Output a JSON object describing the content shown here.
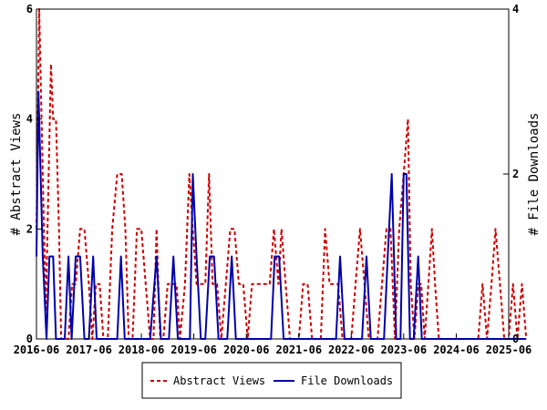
{
  "chart_data": {
    "type": "line",
    "y_left_label": "# Abstract Views",
    "y_right_label": "# File Downloads",
    "y_left_lim": [
      0,
      6
    ],
    "y_right_lim": [
      0,
      4
    ],
    "y_left_ticks": [
      0,
      2,
      4,
      6
    ],
    "y_right_ticks": [
      0,
      2,
      4
    ],
    "x_ticks": [
      "2016-06",
      "2017-06",
      "2018-06",
      "2019-06",
      "2020-06",
      "2021-06",
      "2022-06",
      "2023-06",
      "2024-06",
      "2025-06"
    ],
    "x_start": "2016-06",
    "x_end": "2025-06",
    "grid": false,
    "legend_position": "bottom-center",
    "series": [
      {
        "name": "Abstract Views",
        "axis": "left",
        "color": "#cc0000",
        "style": "dashed",
        "points": [
          [
            "2016-06-01",
            2
          ],
          [
            "2016-06-20",
            6
          ],
          [
            "2016-07-15",
            3
          ],
          [
            "2016-08-05",
            0.5
          ],
          [
            "2016-08-25",
            3
          ],
          [
            "2016-09-10",
            5
          ],
          [
            "2016-09-25",
            4
          ],
          [
            "2016-10-15",
            4
          ],
          [
            "2016-11-05",
            2
          ],
          [
            "2016-11-20",
            0
          ],
          [
            "2017-01-10",
            0
          ],
          [
            "2017-02-05",
            1
          ],
          [
            "2017-03-01",
            1
          ],
          [
            "2017-04-01",
            2
          ],
          [
            "2017-05-01",
            2
          ],
          [
            "2017-06-01",
            1
          ],
          [
            "2017-06-25",
            0
          ],
          [
            "2017-07-20",
            1
          ],
          [
            "2017-08-15",
            1
          ],
          [
            "2017-09-10",
            0
          ],
          [
            "2017-10-10",
            0
          ],
          [
            "2017-11-10",
            2
          ],
          [
            "2017-12-15",
            3
          ],
          [
            "2018-01-15",
            3
          ],
          [
            "2018-02-10",
            2
          ],
          [
            "2018-03-05",
            0
          ],
          [
            "2018-04-01",
            0
          ],
          [
            "2018-05-01",
            2
          ],
          [
            "2018-06-01",
            2
          ],
          [
            "2018-07-01",
            1
          ],
          [
            "2018-08-01",
            0
          ],
          [
            "2018-08-25",
            0
          ],
          [
            "2018-09-15",
            2
          ],
          [
            "2018-10-10",
            0
          ],
          [
            "2018-11-01",
            0
          ],
          [
            "2018-12-01",
            1
          ],
          [
            "2019-01-01",
            1
          ],
          [
            "2019-02-01",
            1
          ],
          [
            "2019-02-25",
            0
          ],
          [
            "2019-04-01",
            1
          ],
          [
            "2019-05-01",
            3
          ],
          [
            "2019-05-25",
            2
          ],
          [
            "2019-06-20",
            1
          ],
          [
            "2019-07-20",
            1
          ],
          [
            "2019-08-20",
            1
          ],
          [
            "2019-09-15",
            3
          ],
          [
            "2019-10-10",
            1
          ],
          [
            "2019-11-10",
            1
          ],
          [
            "2019-12-10",
            0
          ],
          [
            "2020-01-10",
            1
          ],
          [
            "2020-02-10",
            2
          ],
          [
            "2020-03-10",
            2
          ],
          [
            "2020-04-10",
            1
          ],
          [
            "2020-05-10",
            1
          ],
          [
            "2020-06-10",
            0
          ],
          [
            "2020-07-10",
            1
          ],
          [
            "2020-08-10",
            1
          ],
          [
            "2020-09-10",
            1
          ],
          [
            "2020-10-10",
            1
          ],
          [
            "2020-11-10",
            1
          ],
          [
            "2020-12-10",
            2
          ],
          [
            "2021-01-10",
            1
          ],
          [
            "2021-02-01",
            2
          ],
          [
            "2021-03-01",
            1
          ],
          [
            "2021-04-01",
            0
          ],
          [
            "2021-05-01",
            0
          ],
          [
            "2021-06-01",
            0
          ],
          [
            "2021-07-01",
            1
          ],
          [
            "2021-08-01",
            1
          ],
          [
            "2021-09-01",
            0
          ],
          [
            "2021-10-01",
            0
          ],
          [
            "2021-11-01",
            0
          ],
          [
            "2021-12-01",
            2
          ],
          [
            "2022-01-01",
            1
          ],
          [
            "2022-02-01",
            1
          ],
          [
            "2022-03-01",
            1
          ],
          [
            "2022-04-01",
            0
          ],
          [
            "2022-05-01",
            0
          ],
          [
            "2022-06-01",
            0
          ],
          [
            "2022-07-01",
            1
          ],
          [
            "2022-08-01",
            2
          ],
          [
            "2022-09-01",
            1
          ],
          [
            "2022-10-01",
            0
          ],
          [
            "2022-11-01",
            0
          ],
          [
            "2022-12-01",
            0
          ],
          [
            "2023-01-01",
            1
          ],
          [
            "2023-02-01",
            2
          ],
          [
            "2023-03-01",
            2
          ],
          [
            "2023-04-01",
            0
          ],
          [
            "2023-05-01",
            2
          ],
          [
            "2023-06-01",
            3
          ],
          [
            "2023-07-01",
            4
          ],
          [
            "2023-07-20",
            1
          ],
          [
            "2023-08-15",
            0
          ],
          [
            "2023-09-10",
            1
          ],
          [
            "2023-10-01",
            1
          ],
          [
            "2023-10-25",
            0
          ],
          [
            "2023-11-20",
            1
          ],
          [
            "2023-12-15",
            2
          ],
          [
            "2024-01-05",
            1
          ],
          [
            "2024-02-01",
            0
          ],
          [
            "2024-03-01",
            0
          ],
          [
            "2024-04-01",
            0
          ],
          [
            "2024-05-01",
            0
          ],
          [
            "2024-06-01",
            0
          ],
          [
            "2024-07-01",
            0
          ],
          [
            "2024-08-01",
            0
          ],
          [
            "2024-09-01",
            0
          ],
          [
            "2024-10-01",
            0
          ],
          [
            "2024-11-01",
            0
          ],
          [
            "2024-12-01",
            1
          ],
          [
            "2025-01-01",
            0
          ],
          [
            "2025-02-01",
            1
          ],
          [
            "2025-03-01",
            2
          ],
          [
            "2025-04-01",
            1
          ],
          [
            "2025-05-01",
            0
          ],
          [
            "2025-06-01",
            0
          ],
          [
            "2025-07-01",
            1
          ],
          [
            "2025-08-01",
            0
          ],
          [
            "2025-09-01",
            1
          ],
          [
            "2025-10-01",
            0
          ]
        ]
      },
      {
        "name": "File Downloads",
        "axis": "right",
        "color": "#0000aa",
        "style": "solid",
        "points": [
          [
            "2016-06-01",
            1
          ],
          [
            "2016-06-15",
            3
          ],
          [
            "2016-07-15",
            1
          ],
          [
            "2016-08-10",
            0
          ],
          [
            "2016-08-30",
            1
          ],
          [
            "2016-09-25",
            1
          ],
          [
            "2016-10-15",
            0
          ],
          [
            "2016-11-20",
            0
          ],
          [
            "2016-12-15",
            0
          ],
          [
            "2017-01-10",
            1
          ],
          [
            "2017-02-01",
            0
          ],
          [
            "2017-03-01",
            1
          ],
          [
            "2017-04-01",
            1
          ],
          [
            "2017-05-01",
            0
          ],
          [
            "2017-06-01",
            0
          ],
          [
            "2017-07-01",
            1
          ],
          [
            "2017-07-25",
            0
          ],
          [
            "2017-08-20",
            0
          ],
          [
            "2017-09-15",
            0
          ],
          [
            "2017-10-15",
            0
          ],
          [
            "2017-11-15",
            0
          ],
          [
            "2017-12-15",
            0
          ],
          [
            "2018-01-10",
            1
          ],
          [
            "2018-02-05",
            0
          ],
          [
            "2018-03-01",
            0
          ],
          [
            "2018-04-01",
            0
          ],
          [
            "2018-05-01",
            0
          ],
          [
            "2018-06-01",
            0
          ],
          [
            "2018-07-01",
            0
          ],
          [
            "2018-08-01",
            0
          ],
          [
            "2018-09-15",
            1
          ],
          [
            "2018-10-15",
            0
          ],
          [
            "2018-11-10",
            0
          ],
          [
            "2018-12-10",
            0
          ],
          [
            "2019-01-10",
            1
          ],
          [
            "2019-02-10",
            0
          ],
          [
            "2019-03-10",
            0
          ],
          [
            "2019-04-10",
            0
          ],
          [
            "2019-05-05",
            0
          ],
          [
            "2019-05-25",
            2
          ],
          [
            "2019-06-20",
            1
          ],
          [
            "2019-07-20",
            0
          ],
          [
            "2019-08-20",
            0
          ],
          [
            "2019-09-20",
            1
          ],
          [
            "2019-10-20",
            1
          ],
          [
            "2019-11-20",
            0
          ],
          [
            "2019-12-20",
            0
          ],
          [
            "2020-01-20",
            0
          ],
          [
            "2020-02-20",
            1
          ],
          [
            "2020-03-20",
            0
          ],
          [
            "2020-04-20",
            0
          ],
          [
            "2020-05-20",
            0
          ],
          [
            "2020-06-20",
            0
          ],
          [
            "2020-07-20",
            0
          ],
          [
            "2020-08-20",
            0
          ],
          [
            "2020-09-20",
            0
          ],
          [
            "2020-10-20",
            0
          ],
          [
            "2020-11-20",
            0
          ],
          [
            "2020-12-15",
            1
          ],
          [
            "2021-01-15",
            1
          ],
          [
            "2021-02-15",
            0
          ],
          [
            "2021-03-15",
            0
          ],
          [
            "2021-04-15",
            0
          ],
          [
            "2021-05-15",
            0
          ],
          [
            "2021-06-15",
            0
          ],
          [
            "2021-07-15",
            0
          ],
          [
            "2021-08-15",
            0
          ],
          [
            "2021-09-15",
            0
          ],
          [
            "2021-10-15",
            0
          ],
          [
            "2021-11-15",
            0
          ],
          [
            "2021-12-15",
            0
          ],
          [
            "2022-01-15",
            0
          ],
          [
            "2022-02-15",
            0
          ],
          [
            "2022-03-15",
            1
          ],
          [
            "2022-04-15",
            0
          ],
          [
            "2022-05-15",
            0
          ],
          [
            "2022-06-15",
            0
          ],
          [
            "2022-07-15",
            0
          ],
          [
            "2022-08-15",
            0
          ],
          [
            "2022-09-15",
            1
          ],
          [
            "2022-10-15",
            0
          ],
          [
            "2022-11-15",
            0
          ],
          [
            "2022-12-15",
            0
          ],
          [
            "2023-01-15",
            0
          ],
          [
            "2023-02-10",
            1
          ],
          [
            "2023-03-10",
            2
          ],
          [
            "2023-04-10",
            0
          ],
          [
            "2023-05-10",
            0
          ],
          [
            "2023-06-01",
            2
          ],
          [
            "2023-06-20",
            2
          ],
          [
            "2023-07-15",
            0
          ],
          [
            "2023-08-10",
            0
          ],
          [
            "2023-09-10",
            1
          ],
          [
            "2023-10-05",
            0
          ],
          [
            "2023-10-25",
            0
          ],
          [
            "2023-11-20",
            0
          ],
          [
            "2023-12-20",
            0
          ],
          [
            "2024-01-20",
            0
          ],
          [
            "2024-06-01",
            0
          ],
          [
            "2025-01-01",
            0
          ],
          [
            "2025-06-01",
            0
          ],
          [
            "2025-10-01",
            0
          ]
        ]
      }
    ]
  }
}
